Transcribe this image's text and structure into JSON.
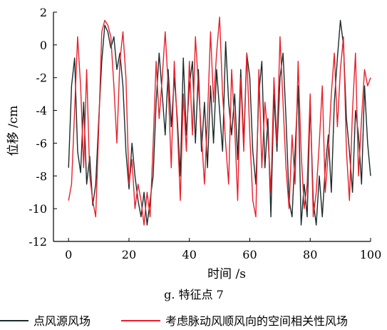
{
  "chart_data": {
    "type": "line",
    "caption": "g. 特征点 7",
    "xlabel": "时间 /s",
    "ylabel": "位移 /cm",
    "xlim": [
      -5,
      100
    ],
    "ylim": [
      -12,
      2
    ],
    "x_ticks": [
      0,
      20,
      40,
      60,
      80,
      100
    ],
    "y_ticks": [
      2,
      0,
      -2,
      -4,
      -6,
      -8,
      -10,
      -12
    ],
    "x_tick_labels": [
      "0",
      "20",
      "40",
      "60",
      "80",
      "100"
    ],
    "y_tick_labels": [
      "2",
      "0",
      "-2",
      "-4",
      "-6",
      "-8",
      "-10",
      "-12"
    ],
    "legend_position": "bottom",
    "series": [
      {
        "name": "点风源风场",
        "color": "#1b2b2b",
        "x": [
          0,
          1,
          2,
          3,
          4,
          5,
          6,
          7,
          8,
          9,
          10,
          11,
          12,
          13,
          14,
          15,
          16,
          17,
          18,
          19,
          20,
          21,
          22,
          23,
          24,
          25,
          26,
          27,
          28,
          29,
          30,
          31,
          32,
          33,
          34,
          35,
          36,
          37,
          38,
          39,
          40,
          41,
          42,
          43,
          44,
          45,
          46,
          47,
          48,
          49,
          50,
          51,
          52,
          53,
          54,
          55,
          56,
          57,
          58,
          59,
          60,
          61,
          62,
          63,
          64,
          65,
          66,
          67,
          68,
          69,
          70,
          71,
          72,
          73,
          74,
          75,
          76,
          77,
          78,
          79,
          80,
          81,
          82,
          83,
          84,
          85,
          86,
          87,
          88,
          89,
          90,
          91,
          92,
          93,
          94,
          95,
          96,
          97,
          98,
          99,
          100
        ],
        "values": [
          -7.5,
          -2.5,
          -0.8,
          -6.5,
          -7.8,
          -3.5,
          -8.5,
          -6.8,
          -9.8,
          -8.5,
          -4.5,
          -1.0,
          1.2,
          0.8,
          -0.2,
          0.5,
          -1.5,
          -0.5,
          -2.5,
          -6.5,
          -8.8,
          -6.0,
          -8.0,
          -9.5,
          -10.5,
          -9.0,
          -11.0,
          -9.5,
          -8.0,
          -3.5,
          -0.5,
          -3.0,
          -5.5,
          -1.5,
          -5.0,
          -2.0,
          -4.5,
          -8.0,
          -0.8,
          -5.5,
          -2.5,
          -1.0,
          -6.0,
          -1.5,
          -6.5,
          -3.5,
          -7.5,
          -2.5,
          -6.0,
          -1.5,
          -4.0,
          -6.5,
          0.2,
          -3.5,
          -5.5,
          -3.0,
          -7.0,
          -1.5,
          -6.0,
          -0.5,
          -2.0,
          -6.5,
          -8.5,
          -3.0,
          -1.0,
          -7.5,
          -4.5,
          -10.5,
          -3.0,
          -6.5,
          -2.0,
          -0.5,
          -4.5,
          -9.5,
          -10.5,
          -6.5,
          -2.5,
          -11.0,
          -8.5,
          -10.5,
          -3.5,
          -9.5,
          -11.0,
          -8.0,
          -10.5,
          -7.5,
          -5.5,
          -9.0,
          -3.5,
          -0.8,
          1.5,
          0.0,
          -4.5,
          -6.5,
          -9.0,
          -4.0,
          -5.5,
          -8.5,
          -2.5,
          -6.0,
          -8.0
        ]
      },
      {
        "name": "考虑脉动风顺风向的空间相关性风场",
        "color": "#e8202a",
        "x": [
          0,
          1,
          2,
          3,
          4,
          5,
          6,
          7,
          8,
          9,
          10,
          11,
          12,
          13,
          14,
          15,
          16,
          17,
          18,
          19,
          20,
          21,
          22,
          23,
          24,
          25,
          26,
          27,
          28,
          29,
          30,
          31,
          32,
          33,
          34,
          35,
          36,
          37,
          38,
          39,
          40,
          41,
          42,
          43,
          44,
          45,
          46,
          47,
          48,
          49,
          50,
          51,
          52,
          53,
          54,
          55,
          56,
          57,
          58,
          59,
          60,
          61,
          62,
          63,
          64,
          65,
          66,
          67,
          68,
          69,
          70,
          71,
          72,
          73,
          74,
          75,
          76,
          77,
          78,
          79,
          80,
          81,
          82,
          83,
          84,
          85,
          86,
          87,
          88,
          89,
          90,
          91,
          92,
          93,
          94,
          95,
          96,
          97,
          98,
          99,
          100
        ],
        "values": [
          -9.5,
          -8.5,
          -4.0,
          0.5,
          -2.5,
          -7.5,
          -1.5,
          -8.0,
          -9.5,
          -10.5,
          -5.0,
          0.8,
          1.5,
          1.2,
          0.5,
          -2.5,
          -6.0,
          -1.0,
          0.8,
          -2.0,
          -8.5,
          -7.0,
          -10.0,
          -8.5,
          -9.5,
          -11.0,
          -9.0,
          -10.5,
          -6.0,
          -1.0,
          -4.5,
          -2.0,
          0.8,
          -2.5,
          -7.5,
          -1.0,
          -5.0,
          -9.5,
          -3.0,
          -6.5,
          -1.0,
          -5.5,
          0.5,
          -2.5,
          -5.5,
          -8.5,
          -4.5,
          0.8,
          -3.5,
          -0.5,
          1.7,
          -3.0,
          -6.0,
          -8.5,
          -1.5,
          -5.0,
          -9.5,
          -2.0,
          -6.5,
          -0.5,
          -5.5,
          -9.5,
          -10.5,
          -1.5,
          -7.5,
          -3.5,
          -5.5,
          -9.0,
          -2.0,
          -6.0,
          0.5,
          -3.5,
          -7.5,
          -10.0,
          -5.5,
          -8.5,
          -1.0,
          -6.5,
          -10.0,
          -8.5,
          -3.0,
          -10.5,
          -9.0,
          -6.0,
          -2.5,
          -9.0,
          -6.5,
          -3.0,
          -0.5,
          -5.0,
          -1.5,
          0.5,
          -6.5,
          -9.5,
          -4.0,
          -0.5,
          -8.0,
          -4.5,
          -1.5,
          -2.5,
          -2.0
        ]
      }
    ]
  }
}
